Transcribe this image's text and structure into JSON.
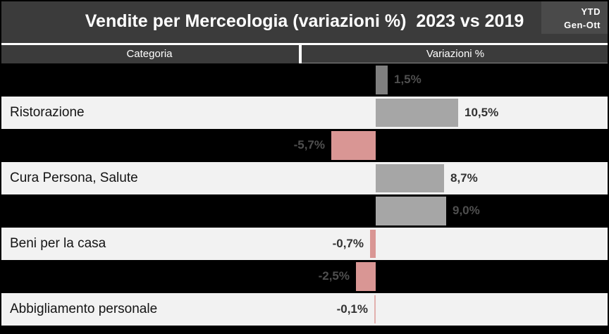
{
  "header": {
    "title": "Vendite per Merceologia (variazioni %)  2023 vs 2019",
    "badge": {
      "line1": "YTD",
      "line2": "Gen-Ott"
    }
  },
  "table": {
    "columns": [
      "Categoria",
      "Variazioni %"
    ]
  },
  "colors": {
    "header_bg": "#3b3b3b",
    "badge_bg": "#4a4a4a",
    "row_dark_bg": "#000000",
    "row_light_bg": "#f2f2f2",
    "positive_bar": "#a6a6a6",
    "negative_bar": "#d99694",
    "muted_bar": "#7f7f7f"
  },
  "chart_data": {
    "type": "bar",
    "orientation": "horizontal",
    "title": "Vendite per Merceologia (variazioni %) 2023 vs 2019",
    "period": "YTD Gen-Ott",
    "category_axis_label": "Categoria",
    "value_axis_label": "Variazioni %",
    "value_labels_shown": true,
    "grid": false,
    "legend": false,
    "rows": [
      {
        "category": "",
        "value": 1.5,
        "label": "1,5%",
        "bar_color": "#7f7f7f",
        "band": "dark"
      },
      {
        "category": "Ristorazione",
        "value": 10.5,
        "label": "10,5%",
        "bar_color": "#a6a6a6",
        "band": "light"
      },
      {
        "category": "",
        "value": -5.7,
        "label": "-5,7%",
        "bar_color": "#d99694",
        "band": "dark"
      },
      {
        "category": "Cura Persona, Salute",
        "value": 8.7,
        "label": "8,7%",
        "bar_color": "#a6a6a6",
        "band": "light"
      },
      {
        "category": "",
        "value": 9.0,
        "label": "9,0%",
        "bar_color": "#a6a6a6",
        "band": "dark"
      },
      {
        "category": "Beni per la casa",
        "value": -0.7,
        "label": "-0,7%",
        "bar_color": "#d99694",
        "band": "light"
      },
      {
        "category": "",
        "value": -2.5,
        "label": "-2,5%",
        "bar_color": "#d99694",
        "band": "dark"
      },
      {
        "category": "Abbigliamento personale",
        "value": -0.1,
        "label": "-0,1%",
        "bar_color": "#e2b0ae",
        "band": "light"
      }
    ]
  }
}
